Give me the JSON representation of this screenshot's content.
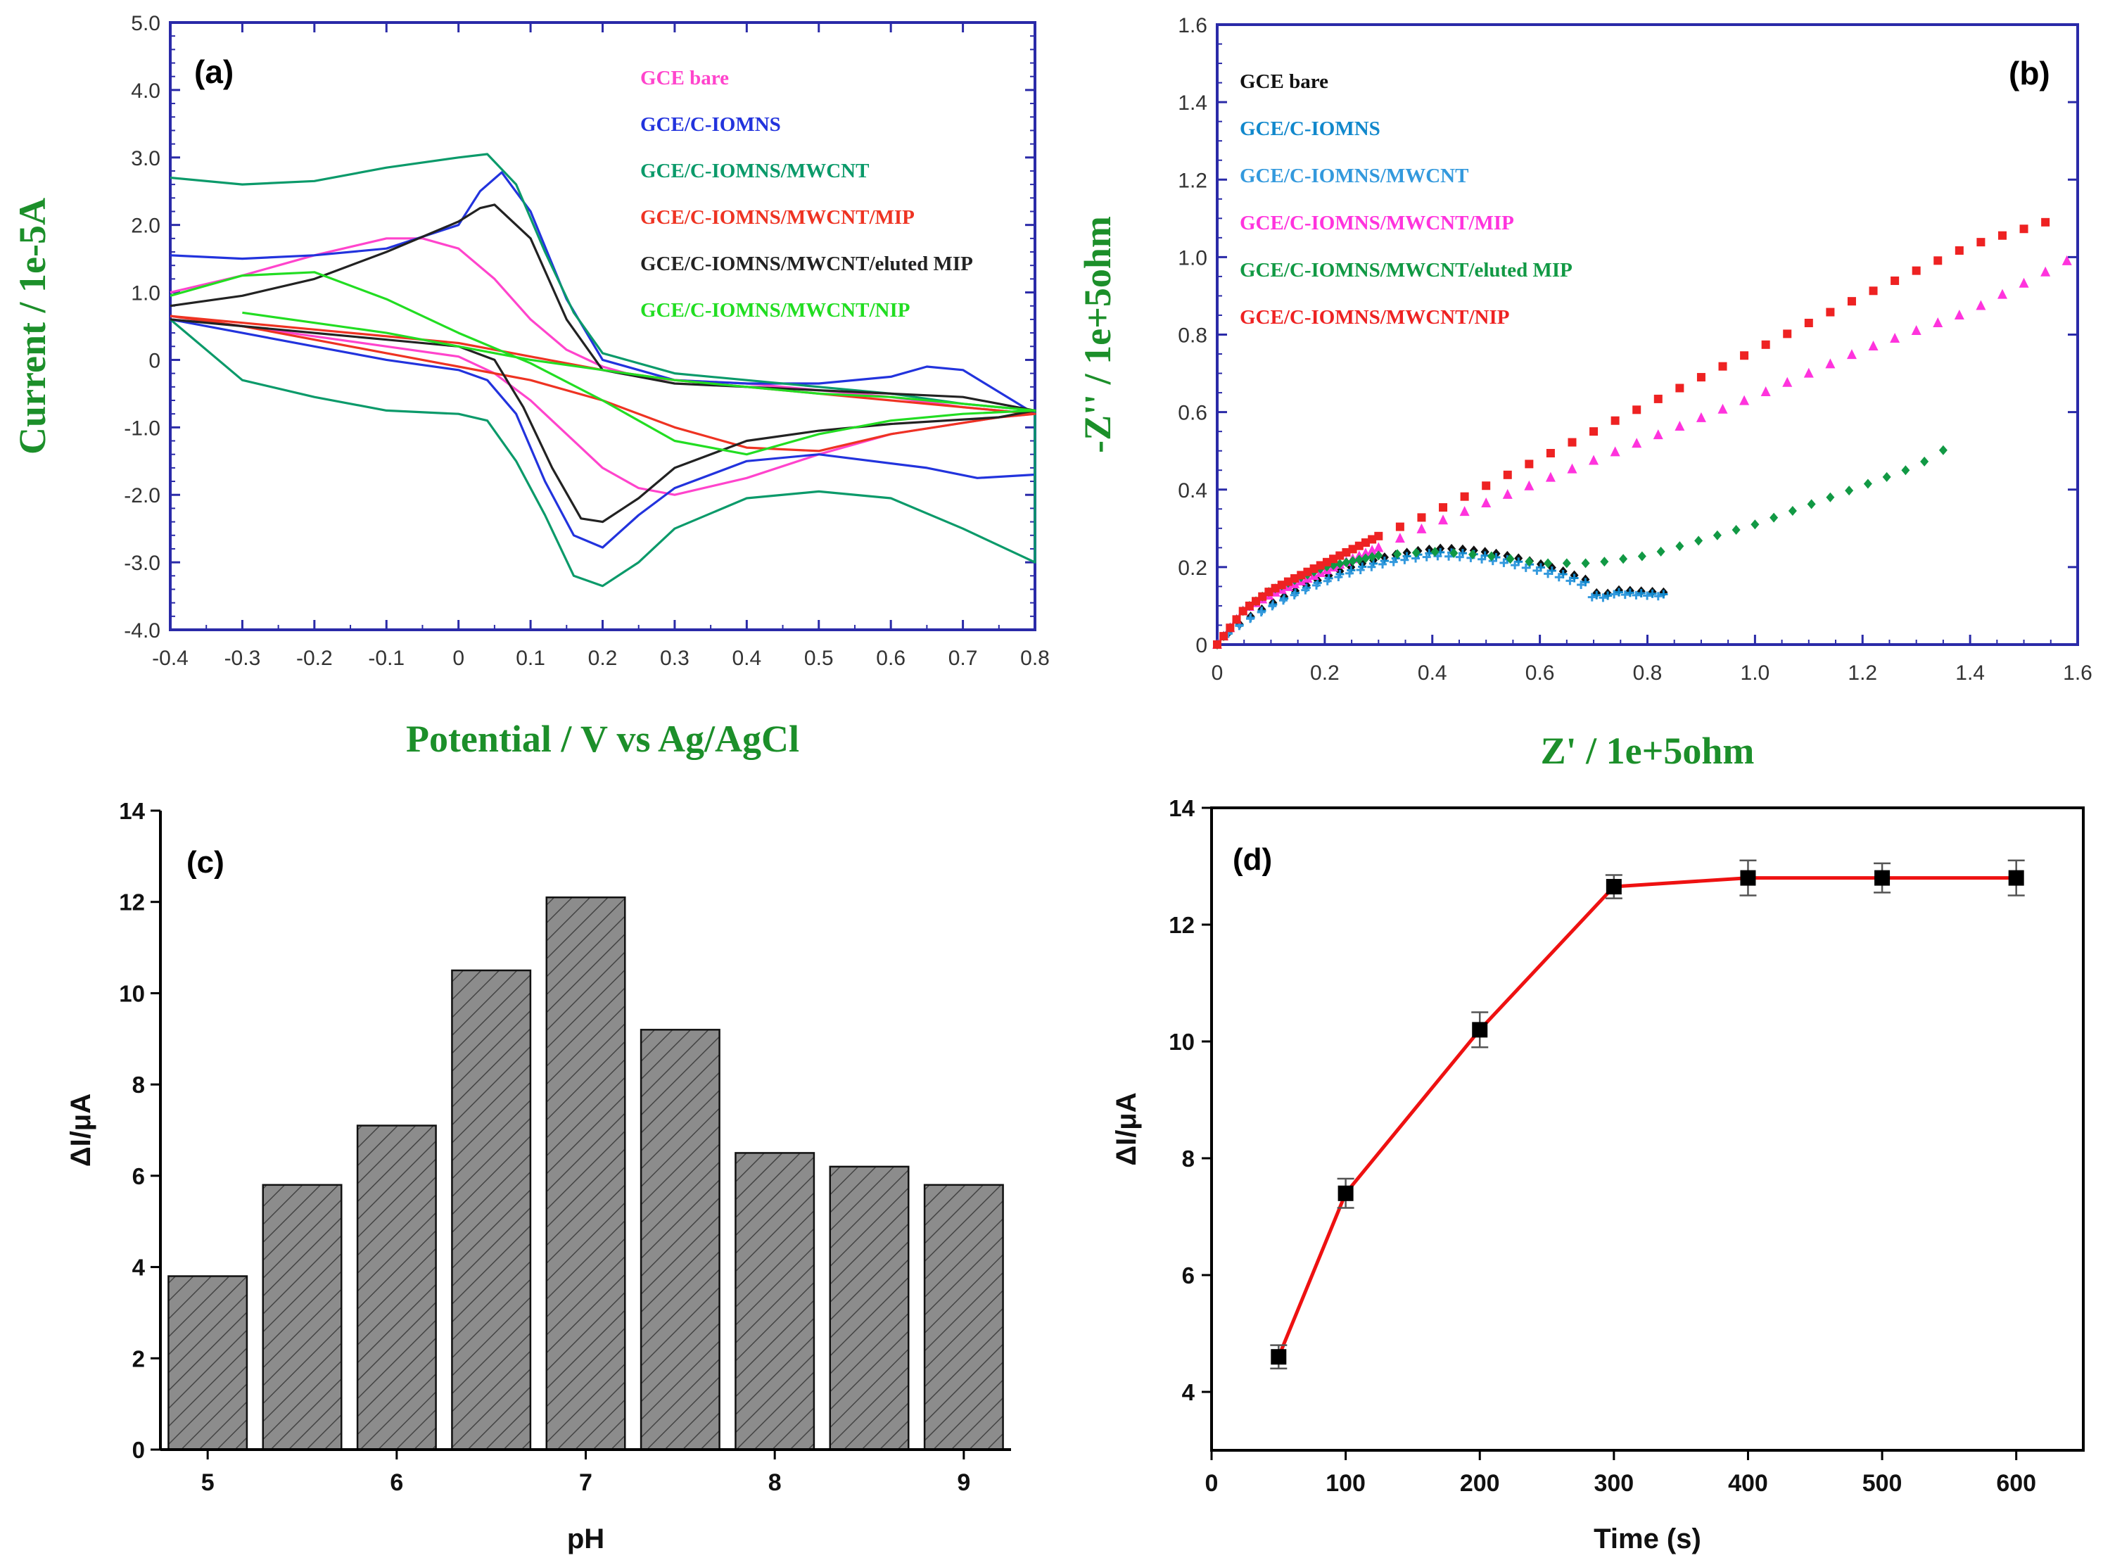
{
  "chart_data": [
    {
      "panel": "(a)",
      "type": "line",
      "title": "",
      "xlabel": "Potential / V vs Ag/AgCl",
      "ylabel": "Current / 1e-5A",
      "xlim": [
        -0.4,
        0.8
      ],
      "ylim": [
        -4.0,
        5.0
      ],
      "xticks": [
        "-0.4",
        "-0.3",
        "-0.2",
        "-0.1",
        "0",
        "0.1",
        "0.2",
        "0.3",
        "0.4",
        "0.5",
        "0.6",
        "0.7",
        "0.8"
      ],
      "yticks": [
        "-4.0",
        "-3.0",
        "-2.0",
        "-1.0",
        "0",
        "1.0",
        "2.0",
        "3.0",
        "4.0",
        "5.0"
      ],
      "legend_position": "top-right",
      "series": [
        {
          "name": "GCE bare",
          "color": "#ff44cc",
          "x": [
            -0.4,
            -0.3,
            -0.2,
            -0.1,
            -0.05,
            0.0,
            0.05,
            0.1,
            0.15,
            0.2,
            0.25,
            0.3,
            0.4,
            0.5,
            0.6,
            0.7,
            0.8,
            0.75,
            0.6,
            0.5,
            0.4,
            0.3,
            0.25,
            0.2,
            0.15,
            0.1,
            0.05,
            0.0,
            -0.1,
            -0.2,
            -0.3,
            -0.4
          ],
          "y": [
            1.0,
            1.25,
            1.55,
            1.8,
            1.8,
            1.65,
            1.2,
            0.6,
            0.15,
            -0.1,
            -0.25,
            -0.3,
            -0.35,
            -0.45,
            -0.55,
            -0.7,
            -0.8,
            -0.85,
            -1.1,
            -1.4,
            -1.75,
            -2.0,
            -1.9,
            -1.6,
            -1.1,
            -0.6,
            -0.2,
            0.05,
            0.2,
            0.35,
            0.5,
            0.65
          ]
        },
        {
          "name": "GCE/C-IOMNS",
          "color": "#2233dd",
          "x": [
            -0.4,
            -0.3,
            -0.2,
            -0.1,
            0.0,
            0.03,
            0.06,
            0.1,
            0.15,
            0.2,
            0.3,
            0.4,
            0.5,
            0.6,
            0.65,
            0.7,
            0.8,
            0.8,
            0.72,
            0.65,
            0.5,
            0.4,
            0.3,
            0.25,
            0.2,
            0.16,
            0.12,
            0.08,
            0.04,
            0.0,
            -0.1,
            -0.2,
            -0.3,
            -0.4
          ],
          "y": [
            1.55,
            1.5,
            1.55,
            1.65,
            2.0,
            2.5,
            2.78,
            2.2,
            0.9,
            0.0,
            -0.3,
            -0.35,
            -0.35,
            -0.25,
            -0.1,
            -0.15,
            -0.8,
            -1.7,
            -1.75,
            -1.6,
            -1.4,
            -1.5,
            -1.9,
            -2.3,
            -2.78,
            -2.6,
            -1.8,
            -0.8,
            -0.3,
            -0.15,
            0.0,
            0.2,
            0.4,
            0.6
          ]
        },
        {
          "name": "GCE/C-IOMNS/MWCNT",
          "color": "#0b9a6a",
          "x": [
            -0.4,
            -0.3,
            -0.2,
            -0.1,
            0.0,
            0.04,
            0.08,
            0.12,
            0.16,
            0.2,
            0.3,
            0.4,
            0.5,
            0.6,
            0.7,
            0.8,
            0.8,
            0.7,
            0.6,
            0.5,
            0.4,
            0.3,
            0.25,
            0.2,
            0.16,
            0.12,
            0.08,
            0.04,
            0.0,
            -0.1,
            -0.2,
            -0.3,
            -0.4
          ],
          "y": [
            2.7,
            2.6,
            2.65,
            2.85,
            3.0,
            3.05,
            2.6,
            1.6,
            0.7,
            0.1,
            -0.2,
            -0.3,
            -0.4,
            -0.5,
            -0.65,
            -0.75,
            -3.0,
            -2.5,
            -2.05,
            -1.95,
            -2.05,
            -2.5,
            -3.0,
            -3.35,
            -3.2,
            -2.3,
            -1.5,
            -0.9,
            -0.8,
            -0.75,
            -0.55,
            -0.3,
            0.6
          ]
        },
        {
          "name": "GCE/C-IOMNS/MWCNT/MIP",
          "color": "#ee3322",
          "x": [
            -0.4,
            -0.3,
            -0.2,
            -0.1,
            0.0,
            0.05,
            0.1,
            0.2,
            0.3,
            0.4,
            0.5,
            0.6,
            0.7,
            0.8,
            0.75,
            0.6,
            0.5,
            0.4,
            0.3,
            0.2,
            0.1,
            0.0,
            -0.1,
            -0.2,
            -0.3,
            -0.4
          ],
          "y": [
            0.65,
            0.55,
            0.45,
            0.35,
            0.25,
            0.15,
            0.05,
            -0.15,
            -0.3,
            -0.4,
            -0.5,
            -0.6,
            -0.7,
            -0.8,
            -0.85,
            -1.1,
            -1.35,
            -1.3,
            -1.0,
            -0.6,
            -0.3,
            -0.1,
            0.1,
            0.3,
            0.5,
            0.65
          ]
        },
        {
          "name": "GCE/C-IOMNS/MWCNT/eluted MIP",
          "color": "#222222",
          "x": [
            -0.4,
            -0.3,
            -0.2,
            -0.1,
            0.0,
            0.03,
            0.05,
            0.1,
            0.15,
            0.2,
            0.3,
            0.4,
            0.5,
            0.6,
            0.7,
            0.8,
            0.75,
            0.6,
            0.5,
            0.4,
            0.3,
            0.25,
            0.2,
            0.17,
            0.13,
            0.09,
            0.05,
            0.0,
            -0.1,
            -0.2,
            -0.3,
            -0.4
          ],
          "y": [
            0.8,
            0.95,
            1.2,
            1.6,
            2.05,
            2.25,
            2.3,
            1.8,
            0.6,
            -0.15,
            -0.35,
            -0.4,
            -0.45,
            -0.5,
            -0.55,
            -0.75,
            -0.85,
            -0.95,
            -1.05,
            -1.2,
            -1.6,
            -2.05,
            -2.4,
            -2.35,
            -1.6,
            -0.7,
            0.0,
            0.2,
            0.3,
            0.4,
            0.5,
            0.6
          ]
        },
        {
          "name": "GCE/C-IOMNS/MWCNT/NIP",
          "color": "#22dd22",
          "x": [
            -0.3,
            -0.2,
            -0.1,
            0.0,
            0.1,
            0.2,
            0.3,
            0.4,
            0.5,
            0.6,
            0.7,
            0.8,
            0.7,
            0.6,
            0.5,
            0.4,
            0.3,
            0.2,
            0.1,
            0.0,
            -0.1,
            -0.2,
            -0.3,
            -0.4
          ],
          "y": [
            0.7,
            0.55,
            0.4,
            0.2,
            0.0,
            -0.15,
            -0.3,
            -0.4,
            -0.5,
            -0.55,
            -0.65,
            -0.75,
            -0.8,
            -0.9,
            -1.1,
            -1.4,
            -1.2,
            -0.6,
            -0.05,
            0.4,
            0.9,
            1.3,
            1.25,
            0.95
          ]
        }
      ]
    },
    {
      "panel": "(b)",
      "type": "scatter",
      "title": "",
      "xlabel": "Z' / 1e+5ohm",
      "ylabel": "-Z'' / 1e+5ohm",
      "xlim": [
        0,
        1.6
      ],
      "ylim": [
        0,
        1.6
      ],
      "xticks": [
        "0",
        "0.2",
        "0.4",
        "0.6",
        "0.8",
        "1.0",
        "1.2",
        "1.4",
        "1.6"
      ],
      "yticks": [
        "0",
        "0.2",
        "0.4",
        "0.6",
        "0.8",
        "1.0",
        "1.2",
        "1.4",
        "1.6"
      ],
      "legend_position": "top-left",
      "series": [
        {
          "name": "GCE bare",
          "color": "#111111",
          "shape": "diamond",
          "nyquist": {
            "x0": 0.0,
            "x1": 0.83,
            "peak": 0.25,
            "tail": 0.0
          }
        },
        {
          "name": "GCE/C-IOMNS",
          "color": "#1188cc",
          "shape": "plus",
          "nyquist": {
            "x0": 0.0,
            "x1": 0.83,
            "peak": 0.24,
            "tail": 0.0
          }
        },
        {
          "name": "GCE/C-IOMNS/MWCNT",
          "color": "#3399dd",
          "shape": "plus",
          "nyquist": {
            "x0": 0.0,
            "x1": 0.82,
            "peak": 0.23,
            "tail": 0.0
          }
        },
        {
          "name": "GCE/C-IOMNS/MWCNT/MIP",
          "color": "#ff33dd",
          "shape": "triangle",
          "linear": {
            "x": [
              0.0,
              0.05,
              0.1,
              0.2,
              0.3,
              0.4,
              0.6,
              0.8,
              1.0,
              1.2,
              1.4,
              1.58
            ],
            "y": [
              0.0,
              0.09,
              0.13,
              0.19,
              0.25,
              0.31,
              0.42,
              0.53,
              0.64,
              0.76,
              0.86,
              0.99
            ]
          }
        },
        {
          "name": "GCE/C-IOMNS/MWCNT/eluted MIP",
          "color": "#119944",
          "shape": "diamond",
          "x": [
            0.0,
            0.05,
            0.1,
            0.2,
            0.3,
            0.4,
            0.5,
            0.6,
            0.7,
            0.8,
            0.9,
            1.0,
            1.1,
            1.2,
            1.3,
            1.36
          ],
          "y": [
            0.0,
            0.09,
            0.14,
            0.2,
            0.23,
            0.24,
            0.23,
            0.21,
            0.21,
            0.23,
            0.27,
            0.31,
            0.36,
            0.41,
            0.46,
            0.51
          ]
        },
        {
          "name": "GCE/C-IOMNS/MWCNT/NIP",
          "color": "#ee2222",
          "shape": "square",
          "linear": {
            "x": [
              0.0,
              0.05,
              0.1,
              0.2,
              0.3,
              0.4,
              0.6,
              0.8,
              1.0,
              1.2,
              1.4,
              1.54
            ],
            "y": [
              0.0,
              0.09,
              0.14,
              0.21,
              0.28,
              0.34,
              0.48,
              0.62,
              0.76,
              0.9,
              1.03,
              1.09
            ]
          }
        }
      ]
    },
    {
      "panel": "(c)",
      "type": "bar",
      "title": "",
      "xlabel": "pH",
      "ylabel": "ΔI/μA",
      "x": [
        5.0,
        5.5,
        6.0,
        6.5,
        7.0,
        7.5,
        8.0,
        8.5,
        9.0
      ],
      "values": [
        3.8,
        5.8,
        7.1,
        10.5,
        12.1,
        9.2,
        6.5,
        6.2,
        5.8
      ],
      "xlim": [
        4.75,
        9.25
      ],
      "ylim": [
        0,
        14
      ],
      "xticks": [
        "5",
        "6",
        "7",
        "8",
        "9"
      ],
      "yticks": [
        "0",
        "2",
        "4",
        "6",
        "8",
        "10",
        "12",
        "14"
      ]
    },
    {
      "panel": "(d)",
      "type": "line",
      "title": "",
      "xlabel": "Time (s)",
      "ylabel": "ΔI/μA",
      "x": [
        50,
        100,
        200,
        300,
        400,
        500,
        600
      ],
      "values": [
        4.6,
        7.4,
        10.2,
        12.65,
        12.8,
        12.8,
        12.8
      ],
      "errors": [
        0.2,
        0.25,
        0.3,
        0.2,
        0.3,
        0.25,
        0.3
      ],
      "xlim": [
        0,
        650
      ],
      "ylim": [
        3,
        14
      ],
      "xticks": [
        "0",
        "100",
        "200",
        "300",
        "400",
        "500",
        "600"
      ],
      "yticks": [
        "4",
        "6",
        "8",
        "10",
        "12",
        "14"
      ],
      "line_color": "#ee1111"
    }
  ]
}
